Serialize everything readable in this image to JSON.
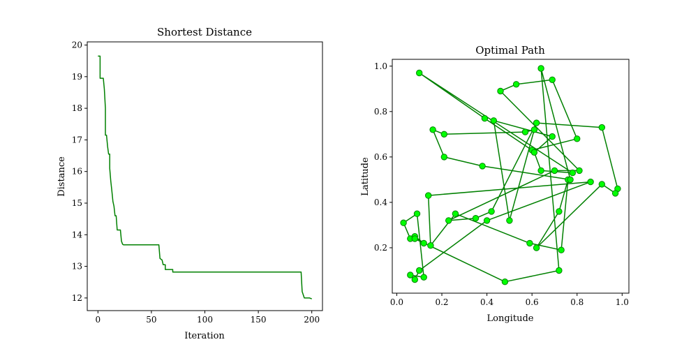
{
  "chart_data": [
    {
      "type": "line",
      "title": "Shortest Distance",
      "xlabel": "Iteration",
      "ylabel": "Distance",
      "xlim": [
        -10,
        210
      ],
      "ylim": [
        11.6,
        20.1
      ],
      "xticks": [
        0,
        50,
        100,
        150,
        200
      ],
      "yticks": [
        12,
        13,
        14,
        15,
        16,
        17,
        18,
        19,
        20
      ],
      "grid": false,
      "color": "#008000",
      "step_points": [
        [
          0,
          19.65
        ],
        [
          2,
          19.65
        ],
        [
          2,
          18.95
        ],
        [
          5,
          18.95
        ],
        [
          6,
          18.6
        ],
        [
          7,
          18.0
        ],
        [
          7,
          17.15
        ],
        [
          8,
          17.15
        ],
        [
          9,
          16.8
        ],
        [
          10,
          16.55
        ],
        [
          11,
          16.55
        ],
        [
          11,
          16.1
        ],
        [
          12,
          15.7
        ],
        [
          13,
          15.4
        ],
        [
          14,
          15.05
        ],
        [
          15,
          14.9
        ],
        [
          16,
          14.6
        ],
        [
          17,
          14.6
        ],
        [
          18,
          14.15
        ],
        [
          21,
          14.15
        ],
        [
          22,
          13.8
        ],
        [
          23,
          13.7
        ],
        [
          24,
          13.68
        ],
        [
          57,
          13.68
        ],
        [
          58,
          13.25
        ],
        [
          60,
          13.2
        ],
        [
          61,
          13.05
        ],
        [
          63,
          13.05
        ],
        [
          63,
          12.9
        ],
        [
          70,
          12.9
        ],
        [
          70,
          12.82
        ],
        [
          190,
          12.82
        ],
        [
          191,
          12.2
        ],
        [
          193,
          12.0
        ],
        [
          198,
          12.0
        ],
        [
          200,
          11.97
        ]
      ]
    },
    {
      "type": "scatter",
      "title": "Optimal Path",
      "xlabel": "Longitude",
      "ylabel": "Latitude",
      "xlim": [
        -0.02,
        1.03
      ],
      "ylim": [
        0.0,
        1.03
      ],
      "xticks": [
        0.0,
        0.2,
        0.4,
        0.6,
        0.8,
        1.0
      ],
      "yticks": [
        0.2,
        0.4,
        0.6,
        0.8,
        1.0
      ],
      "tick_label_format": "1dp",
      "grid": false,
      "line_color": "#008000",
      "marker_color": "#00ff00",
      "marker_edge": "#008000",
      "path": [
        [
          0.1,
          0.97
        ],
        [
          0.39,
          0.77
        ],
        [
          0.6,
          0.63
        ],
        [
          0.8,
          0.68
        ],
        [
          0.69,
          0.94
        ],
        [
          0.53,
          0.92
        ],
        [
          0.46,
          0.89
        ],
        [
          0.81,
          0.54
        ],
        [
          0.7,
          0.54
        ],
        [
          0.23,
          0.32
        ],
        [
          0.35,
          0.33
        ],
        [
          0.42,
          0.36
        ],
        [
          0.62,
          0.75
        ],
        [
          0.91,
          0.73
        ],
        [
          0.98,
          0.46
        ],
        [
          0.97,
          0.44
        ],
        [
          0.91,
          0.48
        ],
        [
          0.62,
          0.2
        ],
        [
          0.72,
          0.36
        ],
        [
          0.76,
          0.5
        ],
        [
          0.73,
          0.19
        ],
        [
          0.59,
          0.22
        ],
        [
          0.26,
          0.35
        ],
        [
          0.15,
          0.21
        ],
        [
          0.14,
          0.43
        ],
        [
          0.86,
          0.49
        ],
        [
          0.4,
          0.32
        ],
        [
          0.1,
          0.1
        ],
        [
          0.08,
          0.06
        ],
        [
          0.06,
          0.08
        ],
        [
          0.12,
          0.07
        ],
        [
          0.09,
          0.35
        ],
        [
          0.03,
          0.31
        ],
        [
          0.06,
          0.24
        ],
        [
          0.08,
          0.25
        ],
        [
          0.12,
          0.22
        ],
        [
          0.08,
          0.24
        ],
        [
          0.48,
          0.05
        ],
        [
          0.72,
          0.1
        ],
        [
          0.64,
          0.99
        ],
        [
          0.77,
          0.5
        ],
        [
          0.38,
          0.56
        ],
        [
          0.21,
          0.6
        ],
        [
          0.16,
          0.72
        ],
        [
          0.21,
          0.7
        ],
        [
          0.57,
          0.71
        ],
        [
          0.61,
          0.72
        ],
        [
          0.5,
          0.32
        ],
        [
          0.43,
          0.76
        ],
        [
          0.69,
          0.69
        ],
        [
          0.61,
          0.62
        ],
        [
          0.64,
          0.54
        ],
        [
          0.78,
          0.53
        ],
        [
          0.1,
          0.97
        ]
      ]
    }
  ]
}
